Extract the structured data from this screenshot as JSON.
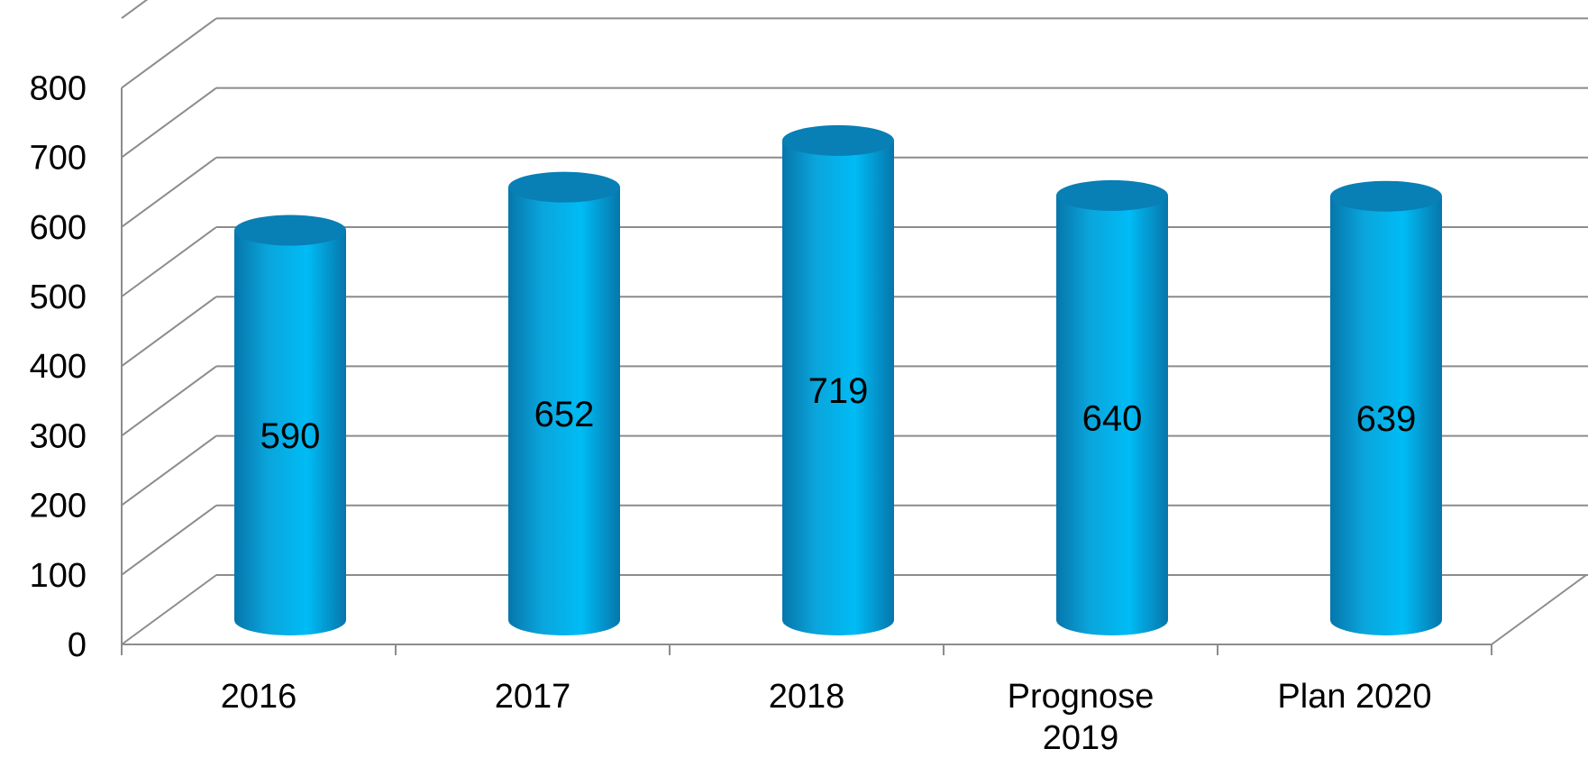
{
  "chart_data": {
    "type": "bar",
    "style": "3d-cylinder",
    "title": "",
    "xlabel": "",
    "ylabel": "",
    "categories": [
      "2016",
      "2017",
      "2018",
      "Prognose 2019",
      "Plan 2020"
    ],
    "category_lines": [
      [
        "2016"
      ],
      [
        "2017"
      ],
      [
        "2018"
      ],
      [
        "Prognose",
        "2019"
      ],
      [
        "Plan 2020"
      ]
    ],
    "values": [
      590,
      652,
      719,
      640,
      639
    ],
    "value_labels": [
      "590",
      "652",
      "719",
      "640",
      "639"
    ],
    "ylim": [
      0,
      900
    ],
    "yticks": [
      0,
      100,
      200,
      300,
      400,
      500,
      600,
      700,
      800
    ],
    "ytick_labels": [
      "0",
      "100",
      "200",
      "300",
      "400",
      "500",
      "600",
      "700",
      "800"
    ],
    "grid": true,
    "legend": "none",
    "colors": {
      "bar_light": "#00bcf5",
      "bar_mid": "#0aa5dc",
      "bar_dark": "#0676ab",
      "bar_top": "#087fb5",
      "grid": "#8c8c8c"
    }
  }
}
